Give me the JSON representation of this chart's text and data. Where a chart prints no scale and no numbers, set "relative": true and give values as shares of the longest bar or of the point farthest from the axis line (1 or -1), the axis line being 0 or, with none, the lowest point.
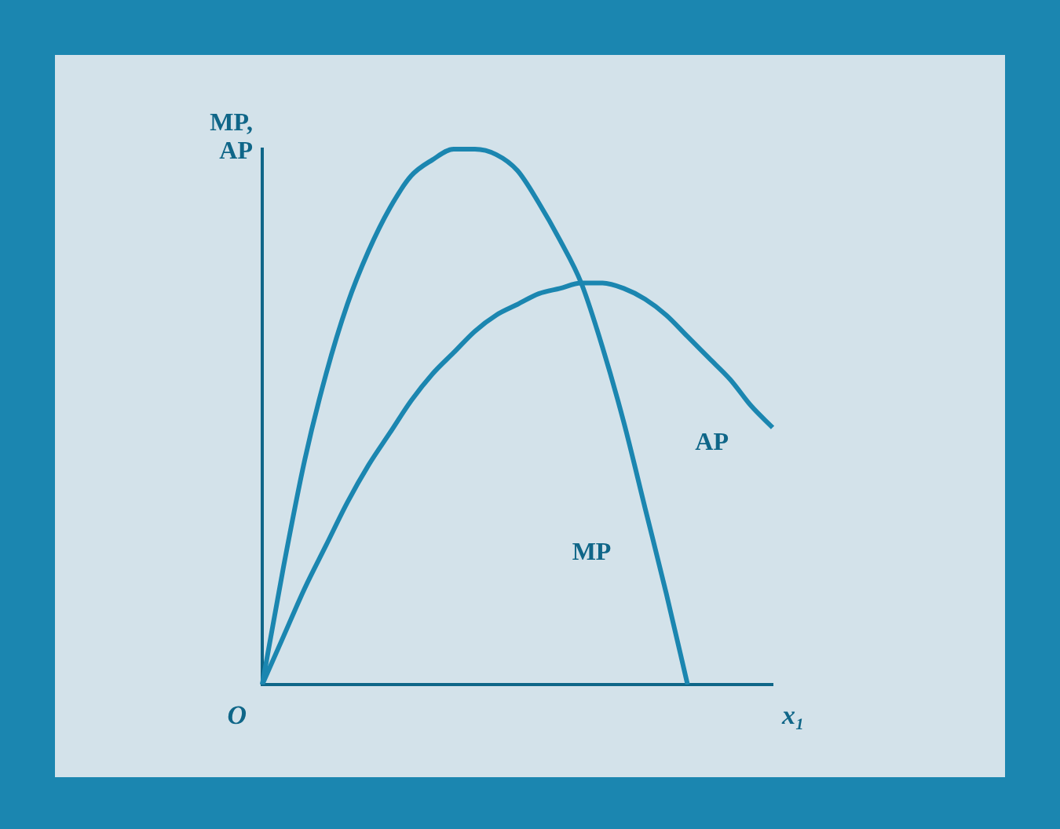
{
  "chart_data": {
    "type": "line",
    "relative": true,
    "ylabel": "MP, AP",
    "xlabel": "x₁",
    "annotations": [
      "O"
    ],
    "grid": false,
    "legend": false,
    "marker": "none",
    "line_style": "solid",
    "categories": [
      null,
      null,
      null,
      null,
      null,
      null,
      null,
      null,
      null,
      null,
      null,
      null,
      null,
      null,
      null,
      null,
      null,
      null,
      null,
      null,
      null,
      null,
      null,
      null,
      null
    ],
    "series": [
      {
        "name": "MP",
        "color": "#1b86b0",
        "values": [
          0,
          0.22,
          0.42,
          0.58,
          0.71,
          0.81,
          0.89,
          0.95,
          0.98,
          1.0,
          1.0,
          0.99,
          0.96,
          0.9,
          0.83,
          0.75,
          0.63,
          0.49,
          0.33,
          0.17,
          0,
          null,
          null,
          null,
          null
        ]
      },
      {
        "name": "AP",
        "color": "#1b86b0",
        "values": [
          0,
          0.09,
          0.18,
          0.26,
          0.34,
          0.41,
          0.47,
          0.53,
          0.58,
          0.62,
          0.66,
          0.69,
          0.71,
          0.73,
          0.74,
          0.75,
          0.75,
          0.74,
          0.72,
          0.69,
          0.65,
          0.61,
          0.57,
          0.52,
          0.48
        ]
      }
    ]
  }
}
